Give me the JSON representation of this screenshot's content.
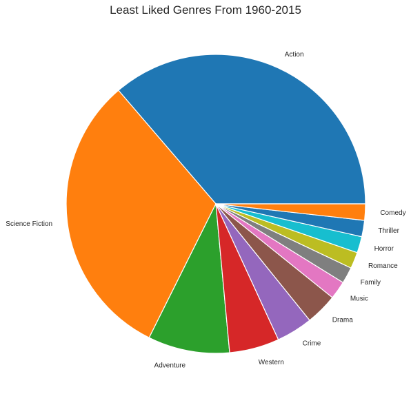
{
  "chart_data": {
    "type": "pie",
    "title": "Least Liked Genres From 1960-2015",
    "start_angle_deg": 0,
    "direction": "counterclockwise",
    "labels": [
      "Action",
      "Science Fiction",
      "Adventure",
      "Western",
      "Crime",
      "Drama",
      "Music",
      "Family",
      "Romance",
      "Horror",
      "Thriller",
      "Comedy"
    ],
    "values": [
      37.0,
      32.0,
      9.0,
      5.5,
      4.0,
      3.5,
      2.0,
      1.8,
      1.8,
      1.8,
      1.8,
      1.8
    ],
    "colors": [
      "#1f77b4",
      "#ff7f0e",
      "#2ca02c",
      "#d62728",
      "#9467bd",
      "#8c564b",
      "#e377c2",
      "#7f7f7f",
      "#bcbd22",
      "#17becf",
      "#1f77b4",
      "#ff7f0e"
    ],
    "legend": "none"
  }
}
